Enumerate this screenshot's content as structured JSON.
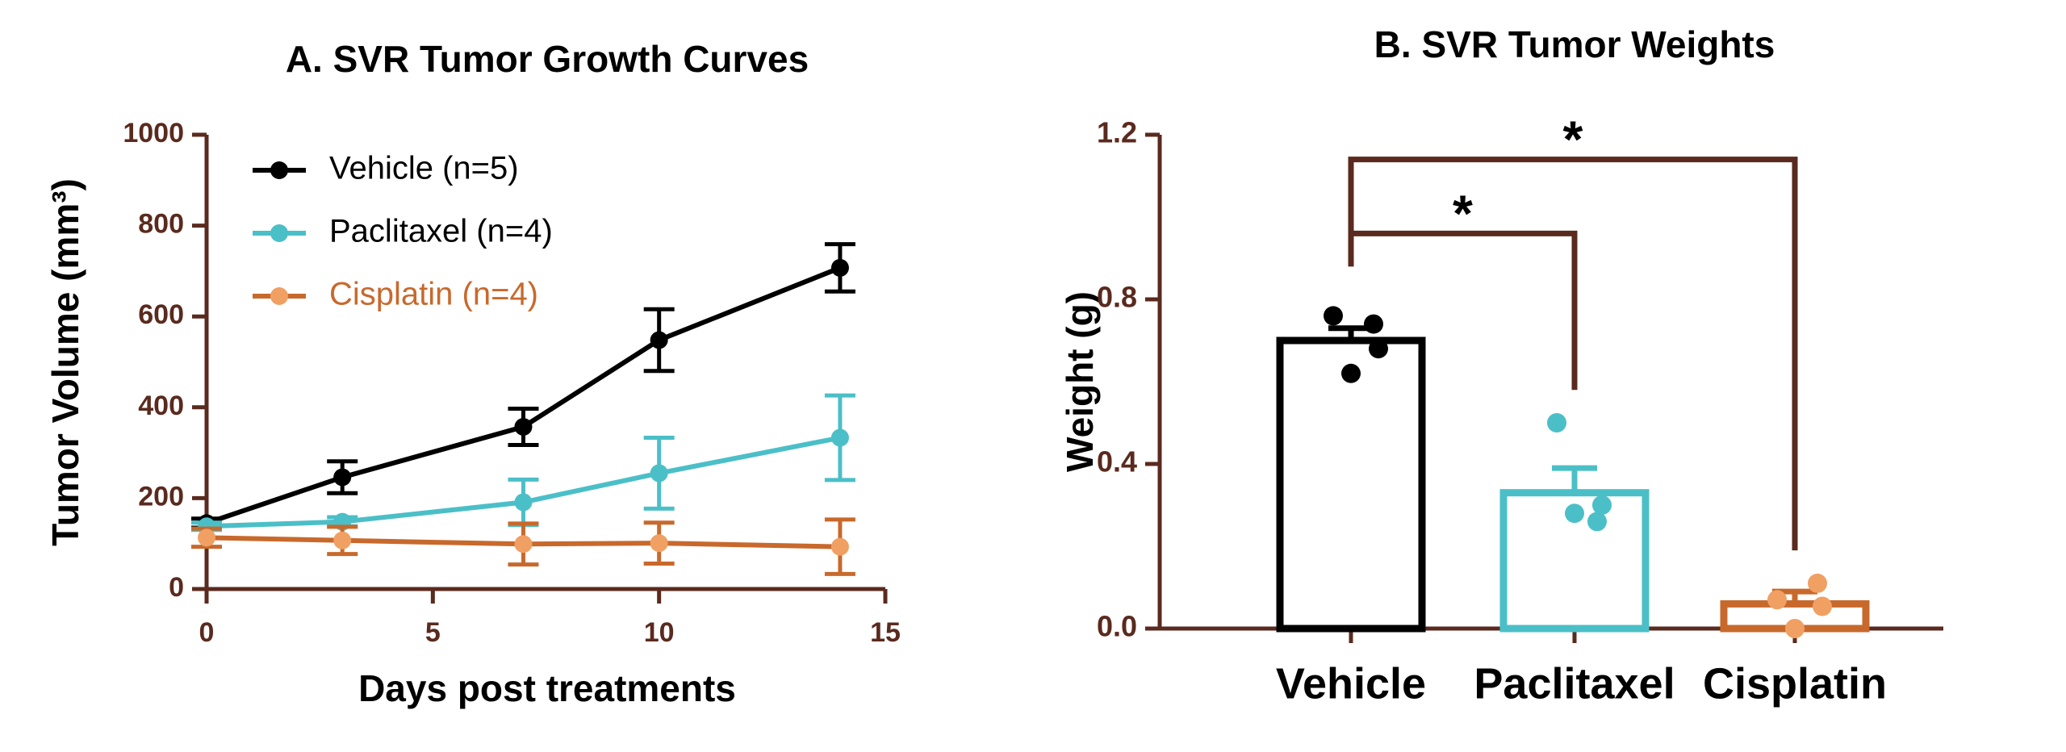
{
  "chart_data": [
    {
      "type": "line",
      "title": "A. SVR Tumor Growth Curves",
      "x_label": "Days post treatments",
      "y_label": "Tumor Volume (mm³)",
      "x": [
        0,
        3,
        7,
        10,
        14
      ],
      "series": [
        {
          "name": "Vehicle (n=5)",
          "color": "#000000",
          "marker_color": "#000000",
          "legend_text_color": "#000000",
          "values": [
            145,
            246,
            357,
            548,
            707
          ],
          "errors": [
            10,
            35,
            40,
            68,
            52
          ]
        },
        {
          "name": "Paclitaxel (n=4)",
          "color": "#4bbfc7",
          "marker_color": "#4bbfc7",
          "legend_text_color": "#000000",
          "values": [
            138,
            148,
            191,
            255,
            333
          ],
          "errors": [
            8,
            10,
            50,
            78,
            93
          ]
        },
        {
          "name": "Cisplatin (n=4)",
          "color": "#c8692c",
          "marker_color": "#f0a062",
          "legend_text_color": "#c8692c",
          "values": [
            113,
            107,
            99,
            101,
            93
          ],
          "errors": [
            20,
            30,
            45,
            45,
            60
          ]
        }
      ],
      "xlim": [
        0,
        15
      ],
      "xticks": [
        0,
        5,
        10,
        15
      ],
      "ylim": [
        0,
        1000
      ],
      "yticks": [
        0,
        200,
        400,
        600,
        800,
        1000
      ],
      "axis_color": "#5a2a1e",
      "legend": "upper left"
    },
    {
      "type": "bar",
      "title": "B. SVR Tumor Weights",
      "y_label": "Weight (g)",
      "categories": [
        "Vehicle",
        "Paclitaxel",
        "Cisplatin"
      ],
      "values": [
        0.7,
        0.33,
        0.06
      ],
      "errors": [
        0.03,
        0.06,
        0.03
      ],
      "colors": [
        "#000000",
        "#4bbfc7",
        "#c8692c"
      ],
      "point_colors": [
        "#000000",
        "#4bbfc7",
        "#f0a062"
      ],
      "points": [
        [
          0.76,
          0.74,
          0.68,
          0.62
        ],
        [
          0.5,
          0.26,
          0.3,
          0.28
        ],
        [
          0.07,
          0.11,
          0.054,
          0.0
        ]
      ],
      "annotations": [
        {
          "from": 0,
          "to": 1,
          "y": 0.96,
          "label": "*"
        },
        {
          "from": 0,
          "to": 2,
          "y": 1.14,
          "label": "*"
        }
      ],
      "ylim": [
        0,
        1.2
      ],
      "yticks": [
        {
          "value": 0,
          "label": "0.0"
        },
        0.4,
        0.8,
        1.2
      ],
      "axis_color": "#5a2a1e"
    }
  ]
}
